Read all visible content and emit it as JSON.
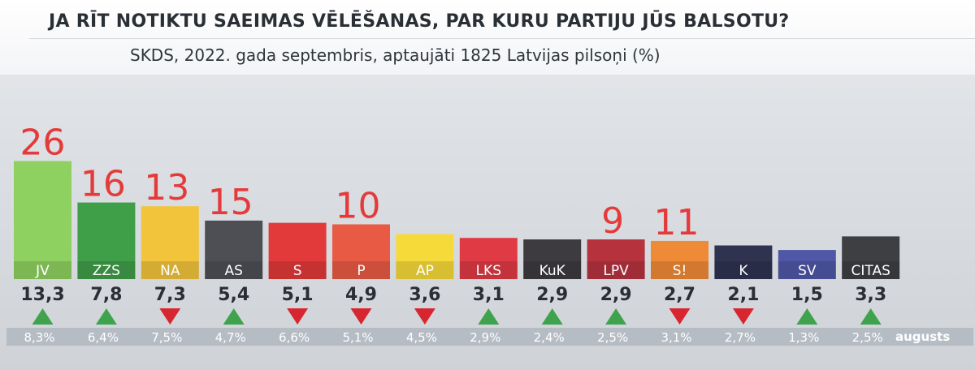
{
  "header": {
    "title": "JA RĪT NOTIKTU SAEIMAS VĒLĒŠANAS, PAR KURU PARTIJU JŪS BALSOTU?",
    "subtitle": "SKDS, 2022. gada septembris, aptaujāti 1825 Latvijas pilsoņi (%)"
  },
  "chart_data": {
    "type": "bar",
    "title": "JA RĪT NOTIKTU SAEIMAS VĒLĒŠANAS, PAR KURU PARTIJU JŪS BALSOTU?",
    "subtitle": "SKDS, 2022. gada septembris, aptaujāti 1825 Latvijas pilsoņi (%)",
    "categories": [
      "JV",
      "ZZS",
      "NA",
      "AS",
      "S",
      "P",
      "AP",
      "LKS",
      "KuK",
      "LPV",
      "S!",
      "K",
      "SV",
      "CITAS"
    ],
    "values": [
      13.3,
      7.8,
      7.3,
      5.4,
      5.1,
      4.9,
      3.6,
      3.1,
      2.9,
      2.9,
      2.7,
      2.1,
      1.5,
      3.3
    ],
    "value_labels": [
      "13,3",
      "7,8",
      "7,3",
      "5,4",
      "5,1",
      "4,9",
      "3,6",
      "3,1",
      "2,9",
      "2,9",
      "2,7",
      "2,1",
      "1,5",
      "3,3"
    ],
    "colors": [
      "#8ed160",
      "#3f9e48",
      "#f2c43c",
      "#4d4f55",
      "#e23a3a",
      "#e85a44",
      "#f6da3a",
      "#e03a45",
      "#3d3b40",
      "#b6333e",
      "#ef8a36",
      "#2f3350",
      "#4f57a6",
      "#3e3f43"
    ],
    "trend": [
      "up",
      "up",
      "down",
      "up",
      "down",
      "down",
      "down",
      "up",
      "up",
      "up",
      "down",
      "down",
      "up",
      "up"
    ],
    "previous_month_label": "augusts",
    "previous_values": [
      8.3,
      6.4,
      7.5,
      4.7,
      6.6,
      5.1,
      4.5,
      2.9,
      2.4,
      2.5,
      3.1,
      2.7,
      1.3,
      2.5
    ],
    "previous_labels": [
      "8,3%",
      "6,4%",
      "7,5%",
      "4,7%",
      "6,6%",
      "5,1%",
      "4,5%",
      "2,9%",
      "2,4%",
      "2,5%",
      "3,1%",
      "2,7%",
      "1,3%",
      "2,5%"
    ],
    "handwritten_annotations": [
      {
        "category": "JV",
        "text": "26"
      },
      {
        "category": "ZZS",
        "text": "16"
      },
      {
        "category": "NA",
        "text": "13"
      },
      {
        "category": "AS",
        "text": "15"
      },
      {
        "category": "P",
        "text": "10"
      },
      {
        "category": "LPV",
        "text": "9"
      },
      {
        "category": "S!",
        "text": "11"
      }
    ],
    "trend_colors": {
      "up": "#3fa34d",
      "down": "#d7262f"
    },
    "ylim": [
      0,
      14
    ],
    "grid": false,
    "legend": "none"
  }
}
